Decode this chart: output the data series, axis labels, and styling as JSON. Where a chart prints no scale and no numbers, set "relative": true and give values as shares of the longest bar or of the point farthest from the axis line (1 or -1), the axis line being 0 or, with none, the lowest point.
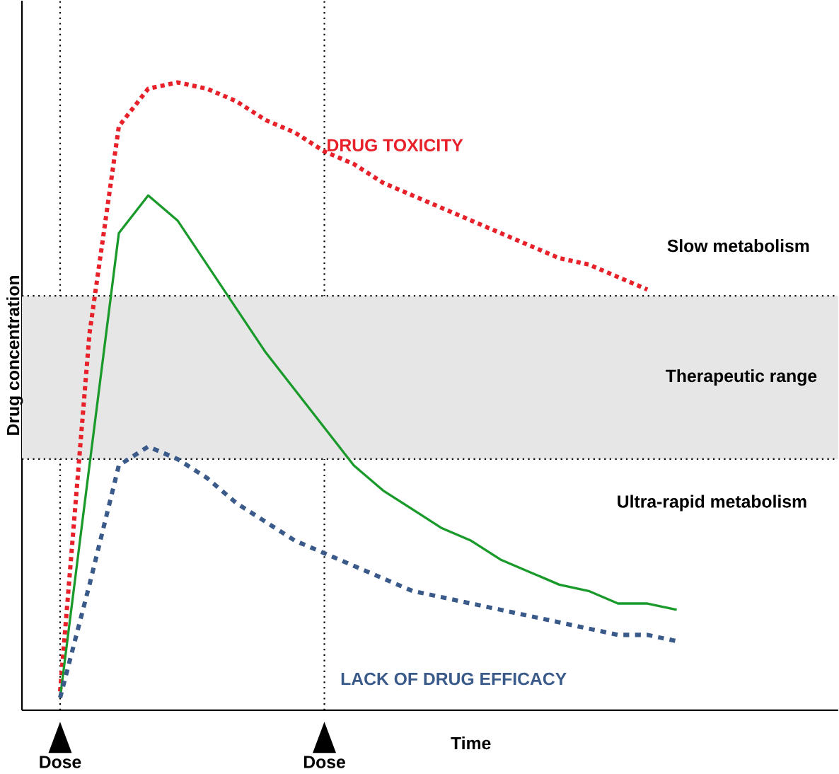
{
  "chart_data": {
    "type": "line",
    "relative": true,
    "xlabel": "Time",
    "ylabel": "Drug concentration",
    "categories": [
      "Dose",
      null,
      null,
      null,
      null,
      null,
      null,
      null,
      null,
      "Dose",
      null,
      null,
      null,
      null,
      null,
      null,
      null,
      null,
      null,
      null,
      null,
      null
    ],
    "grid": "x",
    "series": [
      {
        "color": "#e8202a",
        "line_style": "dotted",
        "values": [
          0.03,
          0.6,
          0.93,
          0.99,
          1.0,
          0.99,
          0.97,
          0.94,
          0.92,
          0.89,
          0.87,
          0.84,
          0.82,
          0.8,
          0.78,
          0.76,
          0.74,
          0.72,
          0.71,
          0.69,
          0.67,
          null
        ]
      },
      {
        "color": "#1a9a2a",
        "line_style": "solid",
        "values": [
          0.02,
          0.39,
          0.76,
          0.82,
          0.78,
          0.71,
          0.64,
          0.57,
          0.51,
          0.45,
          0.39,
          0.35,
          0.32,
          0.29,
          0.27,
          0.24,
          0.22,
          0.2,
          0.19,
          0.17,
          0.17,
          0.16
        ]
      },
      {
        "color": "#3a5a8a",
        "line_style": "dashed",
        "values": [
          0.02,
          0.2,
          0.39,
          0.42,
          0.4,
          0.37,
          0.33,
          0.3,
          0.27,
          0.25,
          0.23,
          0.21,
          0.19,
          0.18,
          0.17,
          0.16,
          0.15,
          0.14,
          0.13,
          0.12,
          0.12,
          0.11
        ]
      }
    ],
    "bands": [
      {
        "axis": "y",
        "from": 0.4,
        "to": 0.66,
        "label": "Therapeutic range",
        "color": "#e6e6e6"
      }
    ],
    "annotations": [
      "DRUG TOXICITY",
      "Slow metabolism",
      "Ultra-rapid metabolism",
      "LACK OF DRUG EFFICACY"
    ]
  }
}
